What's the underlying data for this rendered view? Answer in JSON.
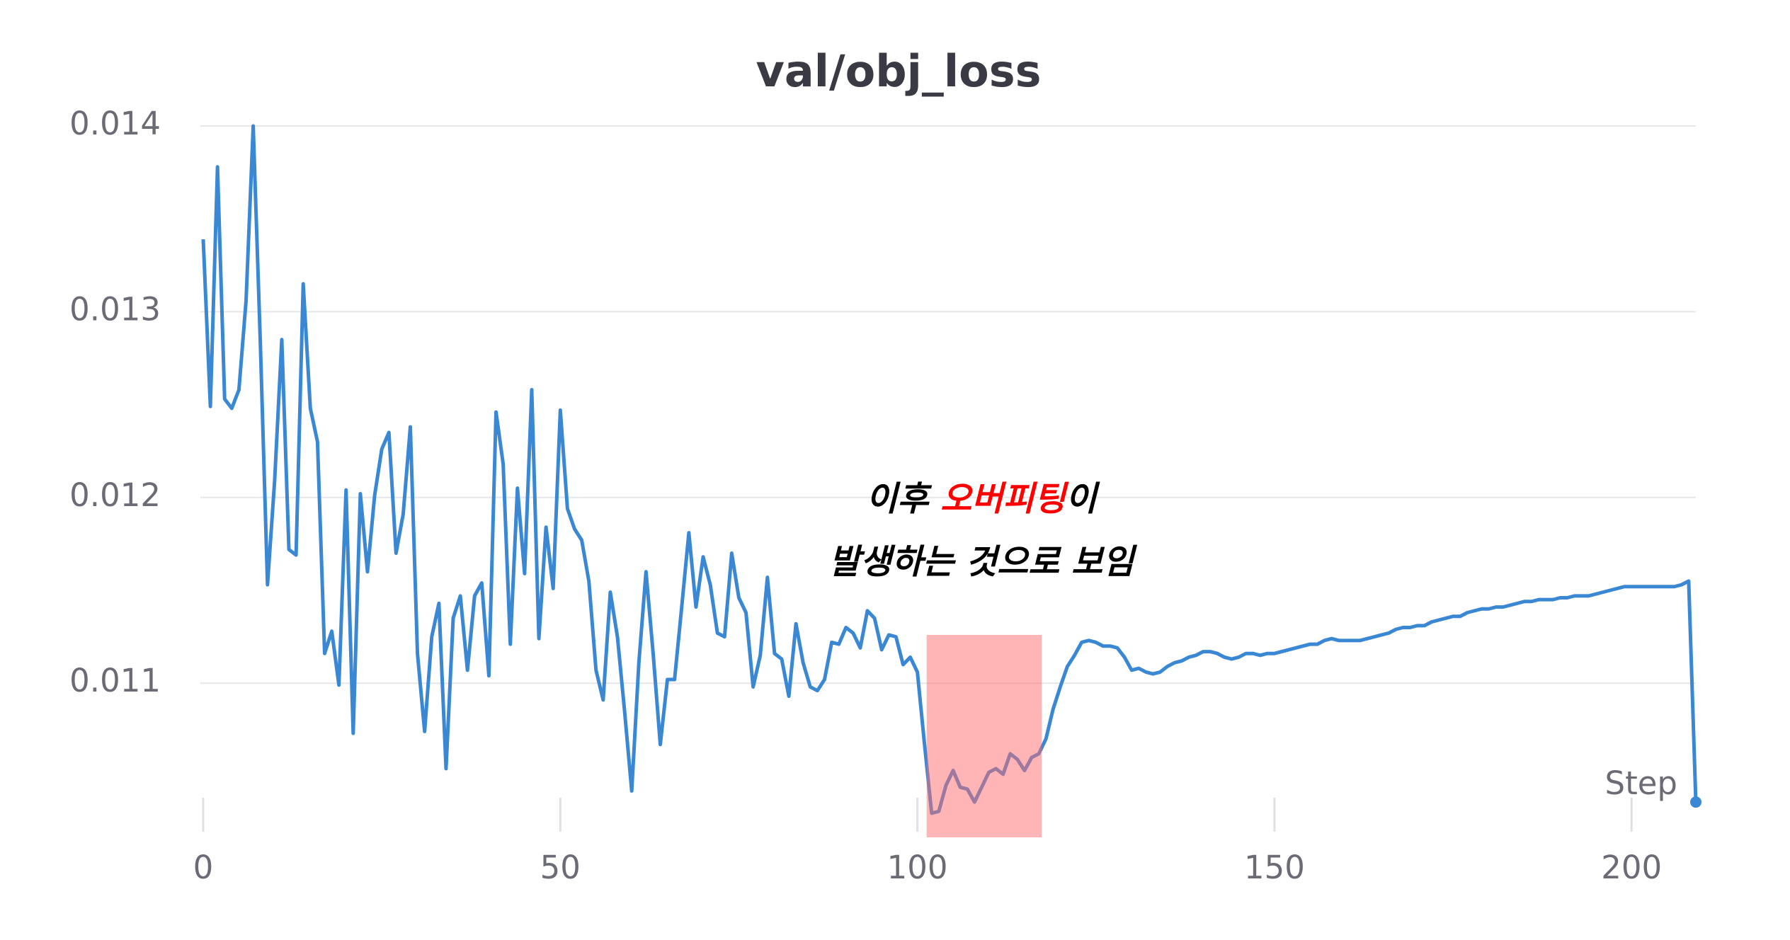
{
  "chart_data": {
    "type": "line",
    "title": "val/obj_loss",
    "x_axis_label": "Step",
    "x": [
      0,
      1,
      2,
      3,
      4,
      5,
      6,
      7,
      8,
      9,
      10,
      11,
      12,
      13,
      14,
      15,
      16,
      17,
      18,
      19,
      20,
      21,
      22,
      23,
      24,
      25,
      26,
      27,
      28,
      29,
      30,
      31,
      32,
      33,
      34,
      35,
      36,
      37,
      38,
      39,
      40,
      41,
      42,
      43,
      44,
      45,
      46,
      47,
      48,
      49,
      50,
      51,
      52,
      53,
      54,
      55,
      56,
      57,
      58,
      59,
      60,
      61,
      62,
      63,
      64,
      65,
      66,
      67,
      68,
      69,
      70,
      71,
      72,
      73,
      74,
      75,
      76,
      77,
      78,
      79,
      80,
      81,
      82,
      83,
      84,
      85,
      86,
      87,
      88,
      89,
      90,
      91,
      92,
      93,
      94,
      95,
      96,
      97,
      98,
      99,
      100,
      101,
      102,
      103,
      104,
      105,
      106,
      107,
      108,
      109,
      110,
      111,
      112,
      113,
      114,
      115,
      116,
      117,
      118,
      119,
      120,
      121,
      122,
      123,
      124,
      125,
      126,
      127,
      128,
      129,
      130,
      131,
      132,
      133,
      134,
      135,
      136,
      137,
      138,
      139,
      140,
      141,
      142,
      143,
      144,
      145,
      146,
      147,
      148,
      149,
      150,
      151,
      152,
      153,
      154,
      155,
      156,
      157,
      158,
      159,
      160,
      161,
      162,
      163,
      164,
      165,
      166,
      167,
      168,
      169,
      170,
      171,
      172,
      173,
      174,
      175,
      176,
      177,
      178,
      179,
      180,
      181,
      182,
      183,
      184,
      185,
      186,
      187,
      188,
      189,
      190,
      191,
      192,
      193,
      194,
      195,
      196,
      197,
      198,
      199,
      200,
      201,
      202,
      203,
      204,
      205,
      206,
      207,
      208,
      209
    ],
    "values": [
      0.01339,
      0.01249,
      0.01378,
      0.01253,
      0.01248,
      0.01258,
      0.01306,
      0.014,
      0.01283,
      0.01153,
      0.01209,
      0.01285,
      0.01172,
      0.01169,
      0.01315,
      0.01248,
      0.0123,
      0.01116,
      0.01128,
      0.01099,
      0.01204,
      0.01073,
      0.01202,
      0.0116,
      0.01201,
      0.01226,
      0.01235,
      0.0117,
      0.01191,
      0.01238,
      0.01116,
      0.01074,
      0.01125,
      0.01143,
      0.01054,
      0.01135,
      0.01147,
      0.01107,
      0.01147,
      0.01154,
      0.01104,
      0.01246,
      0.01218,
      0.01121,
      0.01205,
      0.01159,
      0.01258,
      0.01124,
      0.01184,
      0.01151,
      0.01247,
      0.01194,
      0.01183,
      0.01177,
      0.01155,
      0.01107,
      0.01091,
      0.01149,
      0.01125,
      0.01085,
      0.01042,
      0.01111,
      0.0116,
      0.01116,
      0.01067,
      0.01102,
      0.01102,
      0.01141,
      0.01181,
      0.01141,
      0.01168,
      0.01153,
      0.01127,
      0.01125,
      0.0117,
      0.01146,
      0.01138,
      0.01098,
      0.01115,
      0.01157,
      0.01116,
      0.01113,
      0.01093,
      0.01132,
      0.01111,
      0.01098,
      0.01096,
      0.01102,
      0.01122,
      0.01121,
      0.0113,
      0.01127,
      0.01119,
      0.01139,
      0.01135,
      0.01118,
      0.01126,
      0.01125,
      0.0111,
      0.01114,
      0.01106,
      0.01067,
      0.0103,
      0.01031,
      0.01045,
      0.01053,
      0.01044,
      0.01043,
      0.01036,
      0.01044,
      0.01052,
      0.01054,
      0.01051,
      0.01062,
      0.01059,
      0.01053,
      0.0106,
      0.01062,
      0.0107,
      0.01086,
      0.01098,
      0.01109,
      0.01115,
      0.01122,
      0.01123,
      0.01122,
      0.0112,
      0.0112,
      0.01119,
      0.01114,
      0.01107,
      0.01108,
      0.01106,
      0.01105,
      0.01106,
      0.01109,
      0.01111,
      0.01112,
      0.01114,
      0.01115,
      0.01117,
      0.01117,
      0.01116,
      0.01114,
      0.01113,
      0.01114,
      0.01116,
      0.01116,
      0.01115,
      0.01116,
      0.01116,
      0.01117,
      0.01118,
      0.01119,
      0.0112,
      0.01121,
      0.01121,
      0.01123,
      0.01124,
      0.01123,
      0.01123,
      0.01123,
      0.01123,
      0.01124,
      0.01125,
      0.01126,
      0.01127,
      0.01129,
      0.0113,
      0.0113,
      0.01131,
      0.01131,
      0.01133,
      0.01134,
      0.01135,
      0.01136,
      0.01136,
      0.01138,
      0.01139,
      0.0114,
      0.0114,
      0.01141,
      0.01141,
      0.01142,
      0.01143,
      0.01144,
      0.01144,
      0.01145,
      0.01145,
      0.01145,
      0.01146,
      0.01146,
      0.01147,
      0.01147,
      0.01147,
      0.01148,
      0.01149,
      0.0115,
      0.01151,
      0.01152,
      0.01152,
      0.01152,
      0.01152,
      0.01152,
      0.01152,
      0.01152,
      0.01152,
      0.01153,
      0.01155,
      0.01036
    ],
    "color": "#3a87d4",
    "xlim": [
      0,
      209
    ],
    "xticks": [
      0,
      50,
      100,
      150,
      200
    ],
    "ylim": [
      0.01017,
      0.014
    ],
    "yticks": [
      0.011,
      0.012,
      0.013,
      0.014
    ],
    "grid": true,
    "highlight": {
      "xlim": [
        101.3,
        117.4
      ],
      "ylim": [
        0.01017,
        0.01126
      ],
      "color": "#ff6b6b",
      "opacity": 0.5
    },
    "annotation": {
      "lines": [
        [
          {
            "text": "이후 "
          },
          {
            "text": "오버피팅",
            "color": "#ff0000"
          },
          {
            "text": "이"
          }
        ],
        [
          {
            "text": "발생하는 것으로 보임"
          }
        ]
      ]
    }
  }
}
